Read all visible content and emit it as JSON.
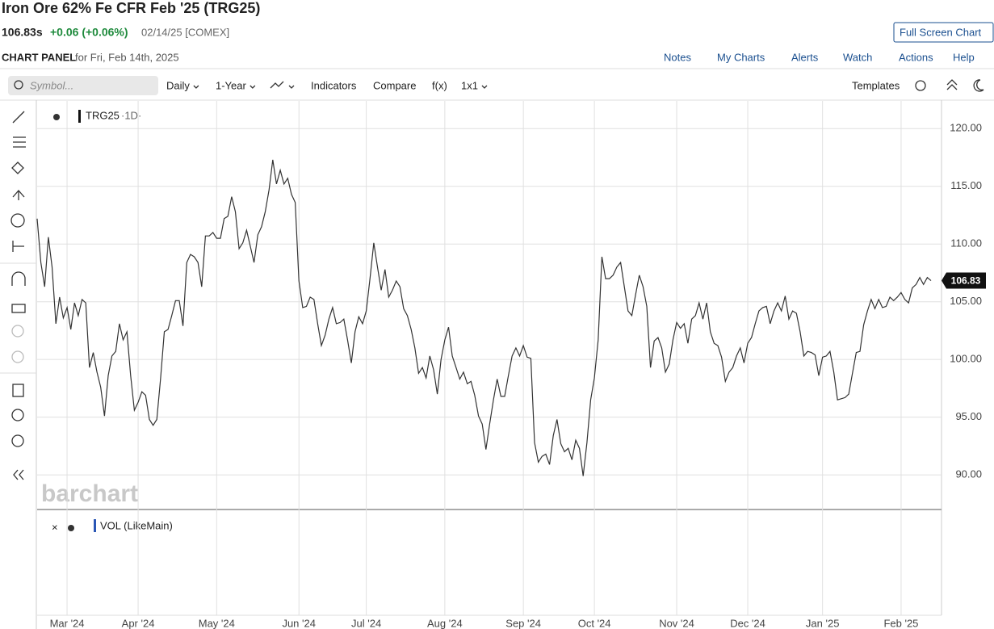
{
  "header": {
    "title": "Iron Ore 62% Fe CFR Feb '25 (TRG25)",
    "price": "106.83s",
    "change": "+0.06 (+0.06%)",
    "date": "02/14/25 [COMEX]",
    "full_screen": "Full Screen Chart",
    "panel_title": "CHART PANEL",
    "panel_date": "for Fri, Feb 14th, 2025",
    "links": [
      "Notes",
      "My Charts",
      "Alerts",
      "Watch",
      "Actions",
      "Help"
    ]
  },
  "toolbar": {
    "symbol_placeholder": "Symbol...",
    "items": [
      "Daily",
      "1-Year",
      "Indicators",
      "Compare",
      "f(x)",
      "1x1"
    ],
    "templates": "Templates"
  },
  "chart_data": {
    "type": "line",
    "name": "TRG25",
    "interval": "·1D·",
    "color": "#333333",
    "values": [
      112.2,
      108.4,
      106.3,
      110.6,
      108,
      103.1,
      105.4,
      103.6,
      104.5,
      102.6,
      104.9,
      103.8,
      105.2,
      104.9,
      99.3,
      100.6,
      98.9,
      97.6,
      95.1,
      98.6,
      100.3,
      100.7,
      103.1,
      101.7,
      102.4,
      98.6,
      95.6,
      96.3,
      97.2,
      96.9,
      94.8,
      94.3,
      94.8,
      98.3,
      102.4,
      102.6,
      103.8,
      105.1,
      105.1,
      102.9,
      108.4,
      109.1,
      108.9,
      108.4,
      106.3,
      110.7,
      110.7,
      111,
      110.5,
      110.5,
      112.2,
      112.4,
      114.1,
      112.8,
      109.6,
      110.1,
      111.2,
      109.8,
      108.4,
      110.8,
      111.5,
      112.8,
      114.7,
      117.3,
      115.2,
      116.4,
      115.2,
      115.7,
      114.3,
      113.6,
      106.8,
      104.5,
      104.6,
      105.4,
      105.2,
      103.1,
      101.2,
      102.1,
      103.5,
      104.5,
      103.1,
      103.2,
      103.5,
      101.7,
      99.7,
      102.4,
      103.7,
      103.1,
      104.2,
      107,
      110.1,
      108,
      106,
      107.8,
      105.4,
      106,
      106.8,
      106.3,
      104.4,
      103.8,
      102.6,
      101,
      98.8,
      99.3,
      98.4,
      100.3,
      99.1,
      97,
      100,
      101.7,
      102.8,
      100.3,
      99.3,
      98.3,
      98.9,
      97.9,
      98.1,
      96.9,
      95.1,
      94.4,
      92.2,
      94.4,
      96.5,
      98.3,
      96.8,
      96.8,
      98.6,
      100.3,
      101,
      100.3,
      101.2,
      100.2,
      100.1,
      92.8,
      91.1,
      91.6,
      91.8,
      90.9,
      93.4,
      94.8,
      92.7,
      92,
      92.3,
      91.3,
      93,
      92.3,
      89.9,
      92.8,
      96.5,
      98.4,
      101.7,
      108.9,
      107,
      107,
      107.3,
      108,
      108.4,
      106.3,
      104.2,
      103.8,
      105.6,
      107.3,
      106.3,
      104.6,
      99.3,
      101.6,
      101.9,
      101,
      98.9,
      99.6,
      101.7,
      103.2,
      102.7,
      103.1,
      101.4,
      103.5,
      103.8,
      104.9,
      103.5,
      104.9,
      102.4,
      101.4,
      101.2,
      100.2,
      98.1,
      98.9,
      99.3,
      100.3,
      101,
      99.7,
      101.4,
      101.9,
      103.1,
      104.2,
      104.5,
      104.6,
      103.1,
      104.2,
      104.9,
      104.2,
      105.5,
      103.5,
      104.2,
      104,
      102.4,
      100.3,
      100.7,
      100.6,
      100.4,
      98.6,
      100.2,
      100.3,
      100.7,
      98.9,
      96.5,
      96.6,
      96.7,
      97,
      98.8,
      100.6,
      100.7,
      103,
      104.2,
      105.2,
      104.4,
      105.2,
      104.5,
      104.6,
      105.4,
      105.1,
      105.4,
      105.8,
      105.2,
      104.9,
      106.2,
      106.5,
      107.1,
      106.5,
      107.1,
      106.83
    ],
    "xlim": [
      0,
      239
    ],
    "xticks": [
      {
        "value": 8,
        "label": "Mar '24"
      },
      {
        "value": 27,
        "label": "Apr '24"
      },
      {
        "value": 48,
        "label": "May '24"
      },
      {
        "value": 70,
        "label": "Jun '24"
      },
      {
        "value": 88,
        "label": "Jul '24"
      },
      {
        "value": 109,
        "label": "Aug '24"
      },
      {
        "value": 130,
        "label": "Sep '24"
      },
      {
        "value": 149,
        "label": "Oct '24"
      },
      {
        "value": 171,
        "label": "Nov '24"
      },
      {
        "value": 190,
        "label": "Dec '24"
      },
      {
        "value": 210,
        "label": "Jan '25"
      },
      {
        "value": 231,
        "label": "Feb '25"
      }
    ],
    "ylim": [
      87,
      122.4
    ],
    "yticks": [
      {
        "value": 90,
        "label": "90.00"
      },
      {
        "value": 95,
        "label": "95.00"
      },
      {
        "value": 100,
        "label": "100.00"
      },
      {
        "value": 105,
        "label": "105.00"
      },
      {
        "value": 110,
        "label": "110.00"
      },
      {
        "value": 115,
        "label": "115.00"
      },
      {
        "value": 120,
        "label": "120.00"
      }
    ],
    "grid": true
  },
  "volume_panel": {
    "label": "VOL (LikeMain)"
  },
  "watermark": "barchart"
}
